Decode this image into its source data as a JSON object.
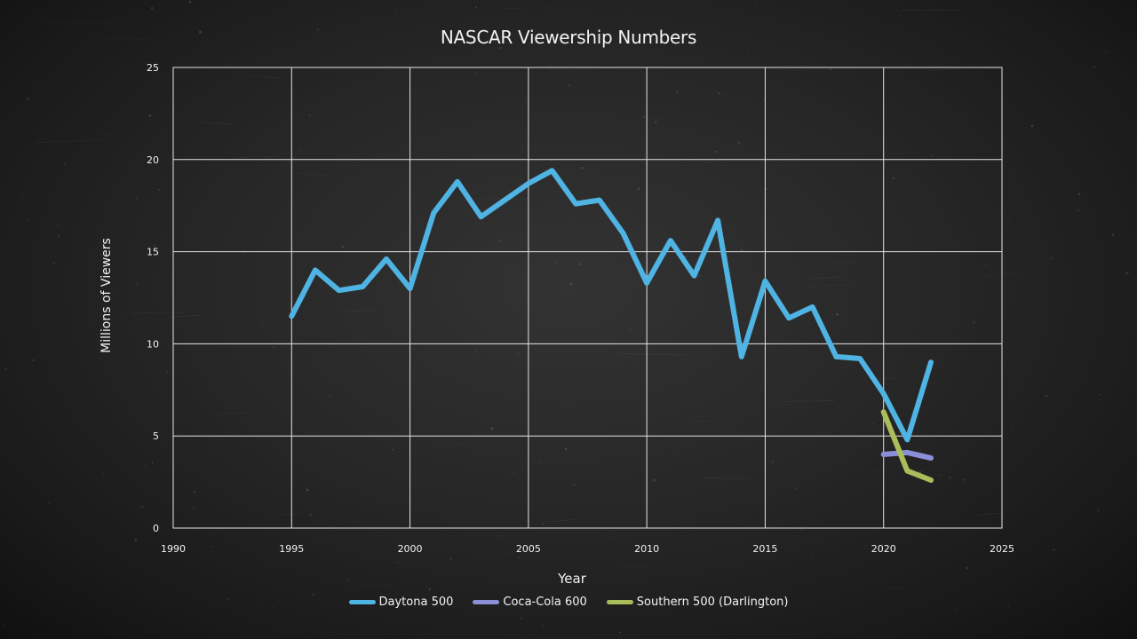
{
  "chart_data": {
    "type": "line",
    "title": "NASCAR Viewership Numbers",
    "xlabel": "Year",
    "ylabel": "Millions of Viewers",
    "xlim": [
      1990,
      2025
    ],
    "ylim": [
      0,
      25
    ],
    "x_ticks": [
      "1990",
      "1995",
      "2000",
      "2005",
      "2010",
      "2015",
      "2020",
      "2025"
    ],
    "y_ticks": [
      "0",
      "5",
      "10",
      "15",
      "20",
      "25"
    ],
    "grid": true,
    "legend_position": "bottom",
    "series": [
      {
        "name": "Daytona 500",
        "color": "#4fb3e3",
        "x": [
          1995,
          1996,
          1997,
          1998,
          1999,
          2000,
          2001,
          2002,
          2003,
          2004,
          2005,
          2006,
          2007,
          2008,
          2009,
          2010,
          2011,
          2012,
          2013,
          2014,
          2015,
          2016,
          2017,
          2018,
          2019,
          2020,
          2021,
          2022
        ],
        "y": [
          11.5,
          14.0,
          12.9,
          13.1,
          14.6,
          13.0,
          17.1,
          18.8,
          16.9,
          17.8,
          18.7,
          19.4,
          17.6,
          17.8,
          16.0,
          13.3,
          15.6,
          13.7,
          16.7,
          9.3,
          13.4,
          11.4,
          12.0,
          9.3,
          9.2,
          7.3,
          4.8,
          9.0
        ]
      },
      {
        "name": "Coca-Cola 600",
        "color": "#8b8fd8",
        "x": [
          2020,
          2021,
          2022
        ],
        "y": [
          4.0,
          4.1,
          3.8
        ]
      },
      {
        "name": "Southern 500 (Darlington)",
        "color": "#a9bd5a",
        "x": [
          2020,
          2021,
          2022
        ],
        "y": [
          6.3,
          3.1,
          2.6
        ]
      }
    ]
  }
}
